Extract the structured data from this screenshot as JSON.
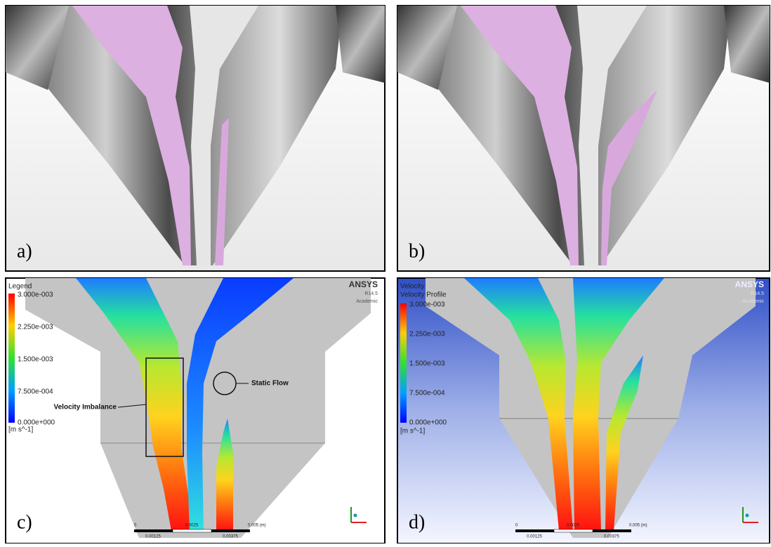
{
  "panels": [
    {
      "label": "a)"
    },
    {
      "label": "b)"
    },
    {
      "label": "c)",
      "legend": {
        "title": "Legend",
        "ticks": [
          "3.000e-003",
          "2.250e-003",
          "1.500e-003",
          "7.500e-004",
          "0.000e+000"
        ],
        "unit": "[m s^-1]"
      },
      "brand": "ANSYS",
      "version": "R14.5",
      "edition": "Academic",
      "annotations": [
        "Velocity Imbalance",
        "Static Flow"
      ],
      "scale": {
        "top": [
          "0",
          "0.0025",
          "0.005 (m)"
        ],
        "bottom": [
          "0.00125",
          "0.00375"
        ]
      }
    },
    {
      "label": "d)",
      "legend": {
        "title": "Velocity",
        "subtitle": "Velocity Profile",
        "ticks": [
          "3.000e-003",
          "2.250e-003",
          "1.500e-003",
          "7.500e-004",
          "0.000e+000"
        ],
        "unit": "[m s^-1]"
      },
      "brand": "ANSYS",
      "version": "R14.5",
      "edition": "Academic",
      "scale": {
        "top": [
          "0",
          "0.0025",
          "0.005 (m)"
        ],
        "bottom": [
          "0.00125",
          "0.00375"
        ]
      }
    }
  ]
}
